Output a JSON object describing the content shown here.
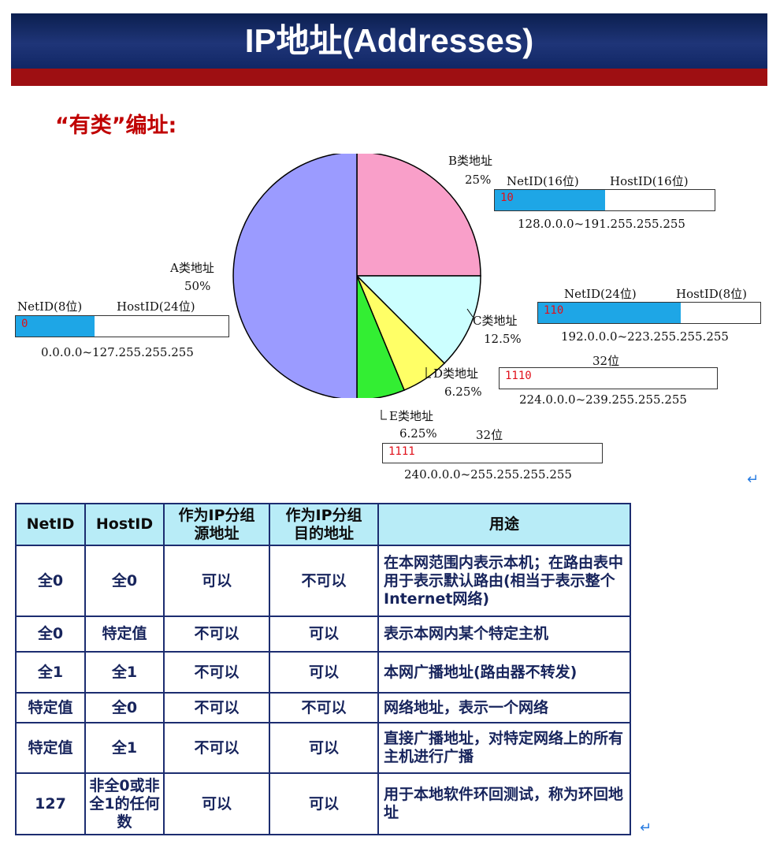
{
  "header": {
    "title": "IP地址(Addresses)"
  },
  "subtitle": "“有类”编址:",
  "chart_data": {
    "type": "pie",
    "slices": [
      {
        "name": "A类地址",
        "label": "A类地址",
        "percent_text": "50%",
        "value": 50,
        "color": "#9b9bff"
      },
      {
        "name": "B类地址",
        "label": "B类地址",
        "percent_text": "25%",
        "value": 25,
        "color": "#f99fc9"
      },
      {
        "name": "C类地址",
        "label": "C类地址",
        "percent_text": "12.5%",
        "value": 12.5,
        "color": "#ccffff"
      },
      {
        "name": "D类地址",
        "label": "D类地址",
        "percent_text": "6.25%",
        "value": 6.25,
        "color": "#ffff66"
      },
      {
        "name": "E类地址",
        "label": "E类地址",
        "percent_text": "6.25%",
        "value": 6.25,
        "color": "#33ee33"
      }
    ]
  },
  "classes": {
    "a": {
      "label": "A类地址",
      "percent": "50%",
      "netid": "NetID(8位)",
      "hostid": "HostID(24位)",
      "bits": "0",
      "range": "0.0.0.0~127.255.255.255"
    },
    "b": {
      "label": "B类地址",
      "percent": "25%",
      "netid": "NetID(16位)",
      "hostid": "HostID(16位)",
      "bits": "10",
      "range": "128.0.0.0~191.255.255.255"
    },
    "c": {
      "label": "C类地址",
      "percent": "12.5%",
      "netid": "NetID(24位)",
      "hostid": "HostID(8位)",
      "bits": "110",
      "range": "192.0.0.0~223.255.255.255"
    },
    "d": {
      "label": "D类地址",
      "percent": "6.25%",
      "width": "32位",
      "bits": "1110",
      "range": "224.0.0.0~239.255.255.255"
    },
    "e": {
      "label": "E类地址",
      "percent": "6.25%",
      "width": "32位",
      "bits": "1111",
      "range": "240.0.0.0~255.255.255.255"
    }
  },
  "return_mark": "↵",
  "table": {
    "headers": [
      "NetID",
      "HostID",
      "作为IP分组\n源地址",
      "作为IP分组\n目的地址",
      "用途"
    ],
    "rows": [
      [
        "全0",
        "全0",
        "可以",
        "不可以",
        "在本网范围内表示本机；在路由表中用于表示默认路由(相当于表示整个Internet网络)"
      ],
      [
        "全0",
        "特定值",
        "不可以",
        "可以",
        "表示本网内某个特定主机"
      ],
      [
        "全1",
        "全1",
        "不可以",
        "可以",
        "本网广播地址(路由器不转发)"
      ],
      [
        "特定值",
        "全0",
        "不可以",
        "不可以",
        "网络地址，表示一个网络"
      ],
      [
        "特定值",
        "全1",
        "不可以",
        "可以",
        "直接广播地址，对特定网络上的所有主机进行广播"
      ],
      [
        "127",
        "非全0或非全1的任何数",
        "可以",
        "可以",
        "用于本地软件环回测试，称为环回地址"
      ]
    ]
  }
}
